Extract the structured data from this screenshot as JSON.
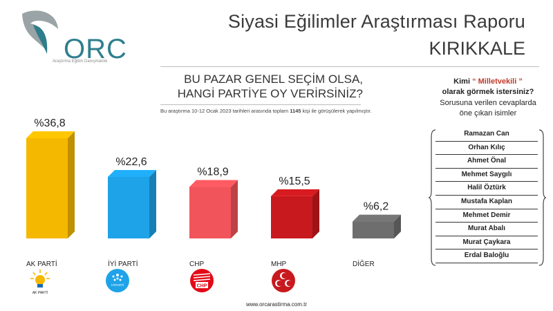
{
  "header": {
    "logo_text": "ORC",
    "logo_tagline": "Araştırma Eğitim Danışmanlık",
    "report_title": "Siyasi Eğilimler Araştırması Raporu",
    "city": "KIRIKKALE"
  },
  "question": {
    "line1": "BU PAZAR GENEL SEÇİM OLSA,",
    "line2": "HANGİ PARTİYE OY VERİRSİNİZ?",
    "note_prefix": "Bu araştırma 10-12 Ocak 2023 tarihleri arasında toplam ",
    "note_count": "1145",
    "note_suffix": " kişi ile görüşülerek yapılmıştır."
  },
  "chart_data": {
    "type": "bar",
    "title": "BU PAZAR GENEL SEÇİM OLSA, HANGİ PARTİYE OY VERİRSİNİZ?",
    "categories": [
      "AK PARTİ",
      "İYİ PARTİ",
      "CHP",
      "MHP",
      "DİĞER"
    ],
    "values": [
      36.8,
      22.6,
      18.9,
      15.5,
      6.2
    ],
    "value_labels": [
      "%36,8",
      "%22,6",
      "%18,9",
      "%15,5",
      "%6,2"
    ],
    "colors": [
      "#f5b800",
      "#1ea3e8",
      "#f2545b",
      "#c8191e",
      "#6e6e6e"
    ],
    "ylim": [
      0,
      40
    ],
    "grid": false,
    "legend": "none"
  },
  "logos": {
    "akp_caption": "AK PARTİ",
    "iyi_caption": "İYİPARTİ",
    "chp_caption": "CHP"
  },
  "right_panel": {
    "line1_a": "Kimi ",
    "line1_b": "“ Milletvekili ”",
    "line2": "olarak görmek istersiniz?",
    "line3": "Sorusuna verilen cevaplarda",
    "line4": "öne çıkan isimler",
    "names": [
      "Ramazan Can",
      "Orhan Kılıç",
      "Ahmet Önal",
      "Mehmet Saygılı",
      "Halil Öztürk",
      "Mustafa Kaplan",
      "Mehmet Demir",
      "Murat Abalı",
      "Murat Çaykara",
      "Erdal Baloğlu"
    ]
  },
  "footer": {
    "website": "www.orcarastirma.com.tr"
  }
}
